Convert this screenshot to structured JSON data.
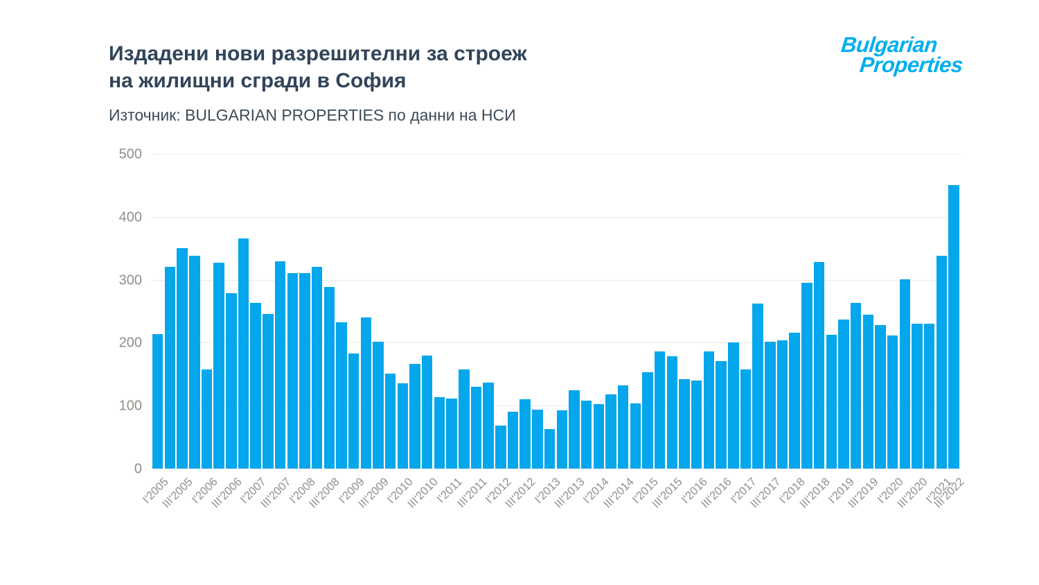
{
  "header": {
    "title_line1": "Издадени нови разрешителни за строеж",
    "title_line2": "на жилищни сгради в София",
    "source": "Източник: BULGARIAN PROPERTIES по данни на НСИ"
  },
  "logo": {
    "line1": "Bulgarian",
    "line2": "Properties"
  },
  "colors": {
    "bar": "#04A6EC",
    "title_text": "#304459",
    "axis_text": "#8F8E88",
    "grid": "#EAEAE7",
    "logo": "#00AEEF"
  },
  "chart_data": {
    "type": "bar",
    "title": "Издадени нови разрешителни за строеж на жилищни сгради в София",
    "subtitle": "Източник: BULGARIAN PROPERTIES по данни на НСИ",
    "xlabel": "",
    "ylabel": "",
    "ylim": [
      0,
      500
    ],
    "y_ticks": [
      500,
      400,
      300,
      200,
      100,
      0
    ],
    "grid": "horizontal",
    "legend": "none",
    "bar_color": "#04A6EC",
    "values": [
      214,
      321,
      350,
      338,
      158,
      327,
      279,
      366,
      263,
      246,
      329,
      311,
      311,
      320,
      288,
      232,
      183,
      240,
      202,
      151,
      136,
      166,
      180,
      113,
      111,
      158,
      130,
      137,
      68,
      90,
      110,
      94,
      63,
      93,
      124,
      108,
      102,
      118,
      132,
      104,
      153,
      186,
      178,
      142,
      140,
      186,
      171,
      200,
      158,
      262,
      201,
      204,
      216,
      295,
      328,
      213,
      237,
      263,
      244,
      228,
      211,
      301,
      230,
      230,
      338,
      450
    ],
    "x_labels": [
      "I'2005",
      "III'2005",
      "I'2006",
      "III'2006",
      "I'2007",
      "III'2007",
      "I'2008",
      "III'2008",
      "I'2009",
      "III'2009",
      "I'2010",
      "III'2010",
      "I'2011",
      "III'2011",
      "I'2012",
      "III'2012",
      "I'2013",
      "III'2013",
      "I'2014",
      "III'2014",
      "I'2015",
      "III'2015",
      "I'2016",
      "III'2016",
      "I'2017",
      "III'2017",
      "I'2018",
      "III'2018",
      "I'2019",
      "III'2019",
      "I'2020",
      "III'2020",
      "I'2021",
      "III'2022"
    ],
    "x_label_bar_indices": [
      0,
      2,
      4,
      6,
      8,
      10,
      12,
      14,
      16,
      18,
      20,
      22,
      24,
      26,
      28,
      30,
      32,
      34,
      36,
      38,
      40,
      42,
      44,
      46,
      48,
      50,
      52,
      54,
      56,
      58,
      60,
      62,
      64,
      65
    ]
  }
}
